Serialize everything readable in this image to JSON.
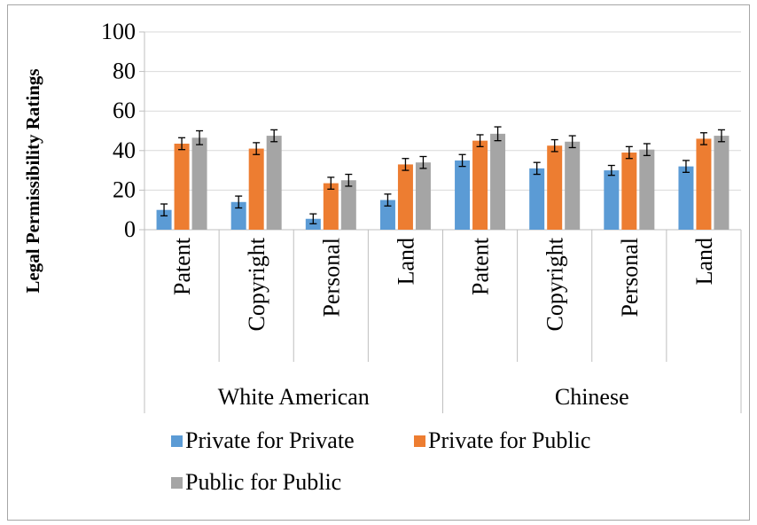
{
  "chart_data": {
    "type": "bar",
    "ylabel": "Legal Permissibility Ratings",
    "ylim": [
      0,
      100
    ],
    "yticks": [
      0,
      20,
      40,
      60,
      80,
      100
    ],
    "grid": true,
    "legend_position": "bottom",
    "groups": [
      {
        "label": "White American",
        "categories": [
          "Patent",
          "Copyright",
          "Personal",
          "Land"
        ]
      },
      {
        "label": "Chinese",
        "categories": [
          "Patent",
          "Copyright",
          "Personal",
          "Land"
        ]
      }
    ],
    "categories": [
      "Patent",
      "Copyright",
      "Personal",
      "Land",
      "Patent",
      "Copyright",
      "Personal",
      "Land"
    ],
    "series": [
      {
        "name": "Private for Private",
        "color": "#5b9bd5",
        "values": [
          10,
          14,
          5.5,
          15,
          35,
          31,
          30,
          32
        ],
        "errors": [
          3,
          3,
          2.5,
          3,
          3,
          3,
          2.5,
          3
        ]
      },
      {
        "name": "Private for Public",
        "color": "#ed7d31",
        "values": [
          43.5,
          41,
          23.5,
          33,
          45,
          42.5,
          39,
          46
        ],
        "errors": [
          3,
          3,
          3,
          3,
          3,
          3,
          3,
          3
        ]
      },
      {
        "name": "Public for Public",
        "color": "#a5a5a5",
        "values": [
          46.5,
          47.5,
          25,
          34,
          48.5,
          44.5,
          40.5,
          47.5
        ],
        "errors": [
          3.5,
          3,
          3,
          3,
          3.5,
          3,
          3,
          3
        ]
      }
    ]
  }
}
